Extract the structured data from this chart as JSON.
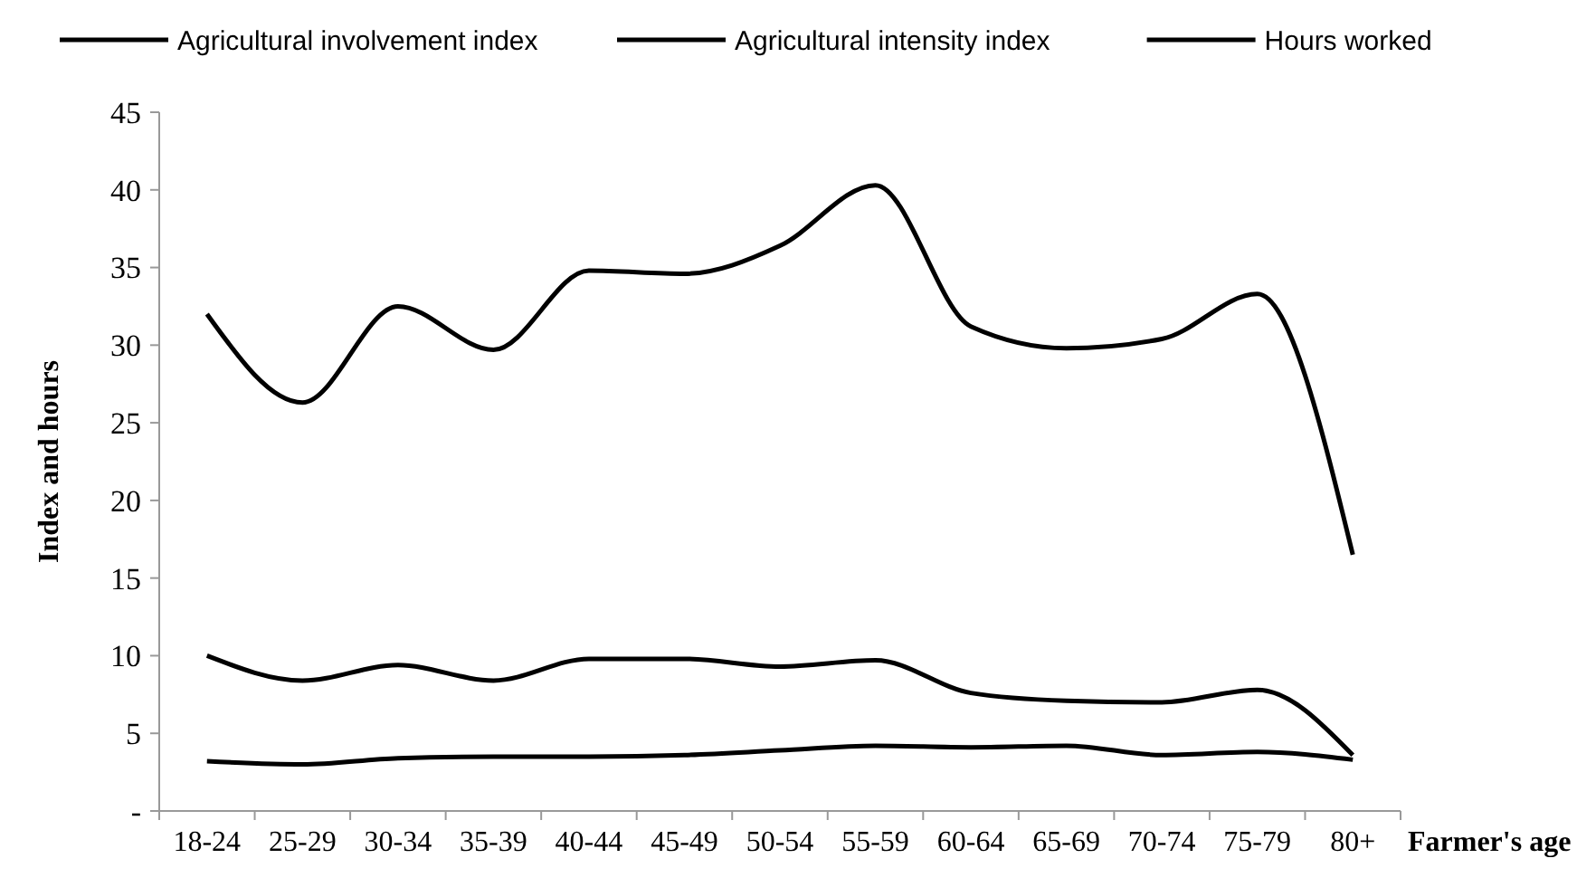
{
  "chart_data": {
    "type": "line",
    "xlabel": "Farmer's age",
    "ylabel": "Index and hours",
    "categories": [
      "18-24",
      "25-29",
      "30-34",
      "35-39",
      "40-44",
      "45-49",
      "50-54",
      "55-59",
      "60-64",
      "65-69",
      "70-74",
      "75-79",
      "80+"
    ],
    "series": [
      {
        "name": "Agricultural involvement index",
        "color": "#000000",
        "values": [
          3.2,
          3.0,
          3.4,
          3.5,
          3.5,
          3.6,
          3.9,
          4.2,
          4.1,
          4.2,
          3.6,
          3.8,
          3.3
        ]
      },
      {
        "name": "Agricultural intensity index",
        "color": "#000000",
        "values": [
          10,
          8.4,
          9.4,
          8.4,
          9.8,
          9.8,
          9.3,
          9.7,
          7.6,
          7.1,
          7.0,
          7.8,
          3.6
        ]
      },
      {
        "name": "Hours worked",
        "color": "#000000",
        "values": [
          32,
          26.3,
          32.5,
          29.7,
          34.8,
          34.6,
          36.4,
          40.3,
          31.2,
          29.8,
          30.4,
          33.3,
          16.5
        ]
      }
    ],
    "ylim": [
      0,
      45
    ],
    "yticks": [
      {
        "value": 0,
        "label": "-"
      },
      5,
      10,
      15,
      20,
      25,
      30,
      35,
      40,
      45
    ],
    "grid": false,
    "legend": "top",
    "marker": "none",
    "line_style": "solid"
  }
}
